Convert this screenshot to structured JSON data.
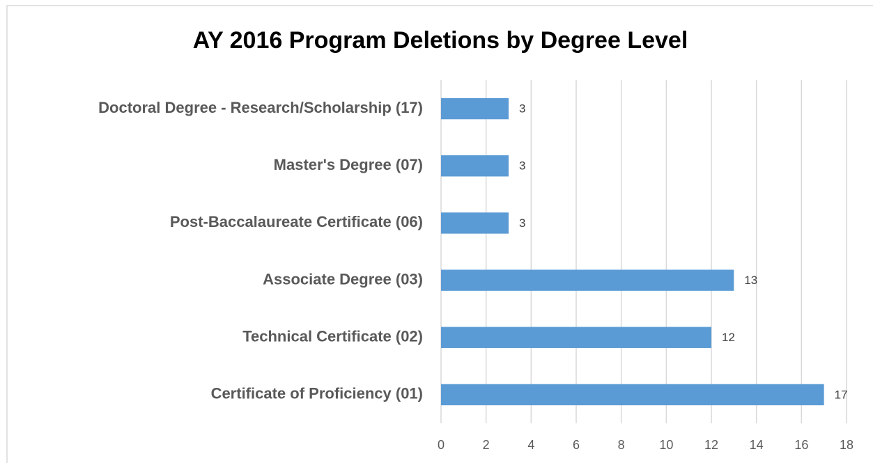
{
  "chart_data": {
    "type": "bar",
    "orientation": "horizontal",
    "title": "AY 2016 Program Deletions by Degree Level",
    "categories": [
      "Doctoral Degree - Research/Scholarship (17)",
      "Master's Degree (07)",
      "Post-Baccalaureate Certificate (06)",
      "Associate Degree (03)",
      "Technical Certificate (02)",
      "Certificate of Proficiency (01)"
    ],
    "values": [
      3,
      3,
      3,
      13,
      12,
      17
    ],
    "color": "#5b9bd5",
    "xlim": [
      0,
      18
    ],
    "xticks": [
      0,
      2,
      4,
      6,
      8,
      10,
      12,
      14,
      16,
      18
    ],
    "grid": true
  }
}
